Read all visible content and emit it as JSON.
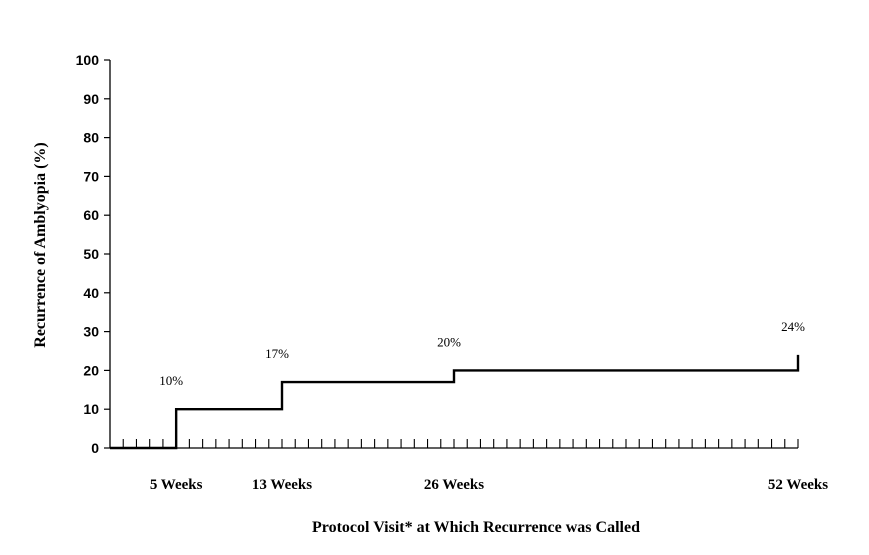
{
  "chart_data": {
    "type": "line",
    "title": "",
    "xlabel": "Protocol Visit* at Which Recurrence was Called",
    "ylabel": "Recurrence of Amblyopia (%)",
    "ylim": [
      0,
      100
    ],
    "yticks": [
      0,
      10,
      20,
      30,
      40,
      50,
      60,
      70,
      80,
      90,
      100
    ],
    "xlim": [
      0,
      52
    ],
    "x_unit": "weeks",
    "x_tick_labels": [
      {
        "week": 5,
        "label": "5 Weeks"
      },
      {
        "week": 13,
        "label": "13 Weeks"
      },
      {
        "week": 26,
        "label": "26 Weeks"
      },
      {
        "week": 52,
        "label": "52 Weeks"
      }
    ],
    "steps": [
      {
        "week": 5,
        "value": 10,
        "label": "10%"
      },
      {
        "week": 13,
        "value": 17,
        "label": "17%"
      },
      {
        "week": 26,
        "value": 20,
        "label": "20%"
      },
      {
        "week": 52,
        "value": 24,
        "label": "24%"
      }
    ],
    "grid": false,
    "legend": "none"
  }
}
